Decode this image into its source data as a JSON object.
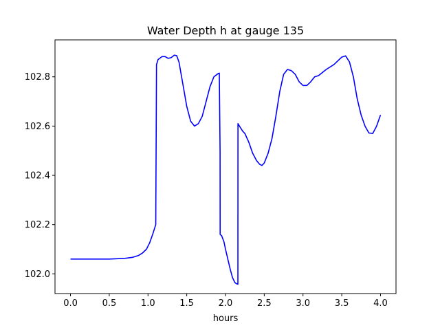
{
  "chart_data": {
    "type": "line",
    "title": "Water Depth h at gauge 135",
    "xlabel": "hours",
    "ylabel": "",
    "xlim": [
      -0.2,
      4.2
    ],
    "ylim": [
      101.92,
      102.95
    ],
    "xticks": [
      0.0,
      0.5,
      1.0,
      1.5,
      2.0,
      2.5,
      3.0,
      3.5,
      4.0
    ],
    "xtick_labels": [
      "0.0",
      "0.5",
      "1.0",
      "1.5",
      "2.0",
      "2.5",
      "3.0",
      "3.5",
      "4.0"
    ],
    "yticks": [
      102.0,
      102.2,
      102.4,
      102.6,
      102.8
    ],
    "ytick_labels": [
      "102.0",
      "102.2",
      "102.4",
      "102.6",
      "102.8"
    ],
    "grid": false,
    "legend": false,
    "series": [
      {
        "color": "#0000ff",
        "x": [
          0.0,
          0.25,
          0.5,
          0.7,
          0.8,
          0.88,
          0.93,
          0.98,
          1.02,
          1.06,
          1.1,
          1.11,
          1.13,
          1.18,
          1.22,
          1.26,
          1.3,
          1.34,
          1.37,
          1.4,
          1.45,
          1.5,
          1.55,
          1.6,
          1.65,
          1.7,
          1.75,
          1.8,
          1.85,
          1.9,
          1.92,
          1.93,
          1.931,
          1.95,
          1.98,
          2.0,
          2.03,
          2.06,
          2.09,
          2.12,
          2.14,
          2.16,
          2.161,
          2.18,
          2.2,
          2.22,
          2.25,
          2.3,
          2.35,
          2.4,
          2.44,
          2.47,
          2.5,
          2.55,
          2.6,
          2.65,
          2.7,
          2.75,
          2.8,
          2.85,
          2.9,
          2.95,
          3.0,
          3.05,
          3.1,
          3.15,
          3.2,
          3.3,
          3.4,
          3.45,
          3.5,
          3.55,
          3.6,
          3.65,
          3.7,
          3.75,
          3.8,
          3.85,
          3.9,
          3.95,
          4.0
        ],
        "y": [
          102.06,
          102.06,
          102.06,
          102.063,
          102.067,
          102.075,
          102.085,
          102.1,
          102.125,
          102.16,
          102.2,
          102.85,
          102.87,
          102.882,
          102.882,
          102.875,
          102.878,
          102.888,
          102.886,
          102.86,
          102.77,
          102.68,
          102.62,
          102.6,
          102.61,
          102.64,
          102.7,
          102.76,
          102.8,
          102.812,
          102.815,
          102.5,
          102.16,
          102.155,
          102.13,
          102.1,
          102.06,
          102.02,
          101.985,
          101.965,
          101.96,
          101.958,
          102.61,
          102.6,
          102.59,
          102.58,
          102.57,
          102.535,
          102.49,
          102.46,
          102.445,
          102.44,
          102.45,
          102.49,
          102.55,
          102.64,
          102.74,
          102.81,
          102.83,
          102.825,
          102.81,
          102.78,
          102.765,
          102.765,
          102.78,
          102.8,
          102.805,
          102.83,
          102.85,
          102.865,
          102.88,
          102.885,
          102.86,
          102.8,
          102.71,
          102.645,
          102.6,
          102.572,
          102.57,
          102.6,
          102.645
        ]
      }
    ]
  }
}
